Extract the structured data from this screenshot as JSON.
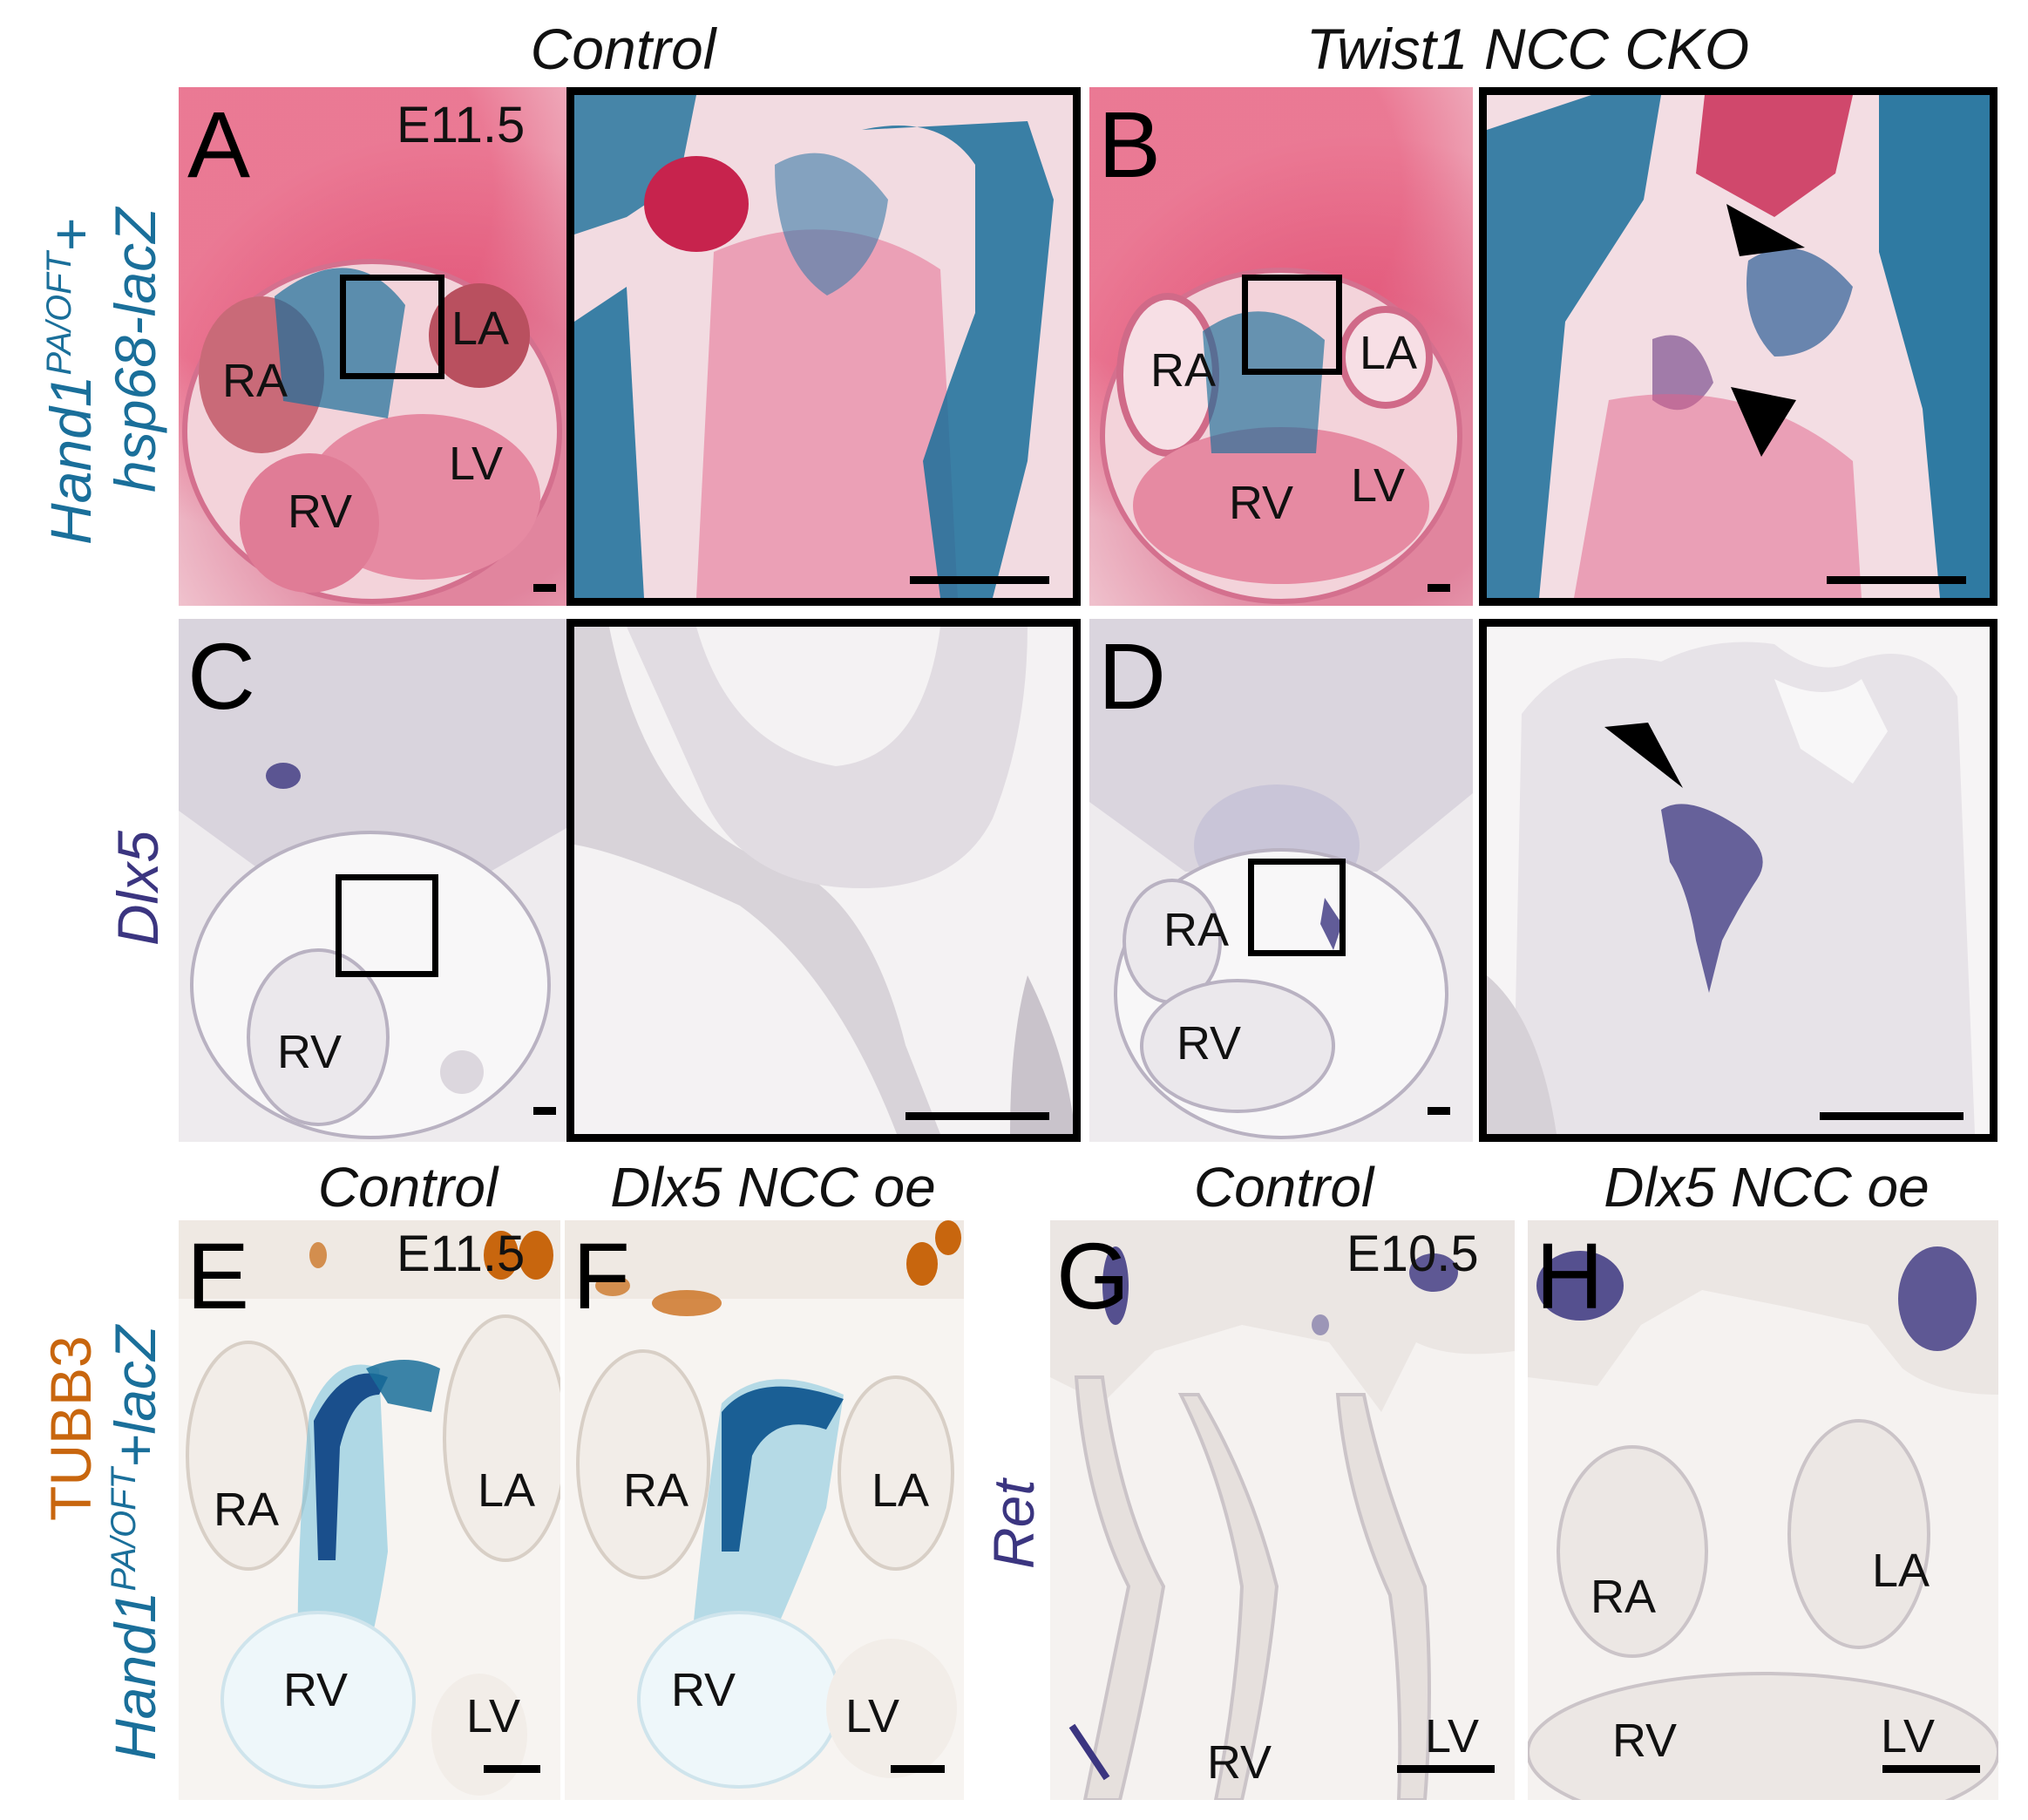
{
  "headers": {
    "top_left": "Control",
    "top_right": "Twist1 NCC CKO",
    "bottom_1": "Control",
    "bottom_2": "Dlx5 NCC oe",
    "bottom_3": "Control",
    "bottom_4": "Dlx5 NCC oe"
  },
  "row_labels": {
    "row1_line1_main": "Hand1",
    "row1_line1_sup": "PA/OFT",
    "row1_line1_plus": "+",
    "row1_line2": "hsp68-lacZ",
    "row2": "Dlx5",
    "row3_line1": "TUBB3",
    "row3_line2_main": "Hand1",
    "row3_line2_sup": "PA/OFT",
    "row3_line2_rest": "+lacZ",
    "row3_right": "Ret"
  },
  "panels": {
    "A": {
      "letter": "A",
      "stage": "E11.5",
      "labels": [
        "RA",
        "LA",
        "LV",
        "RV"
      ]
    },
    "B": {
      "letter": "B",
      "labels": [
        "RA",
        "LA",
        "RV",
        "LV"
      ]
    },
    "C": {
      "letter": "C",
      "labels": [
        "RV"
      ]
    },
    "D": {
      "letter": "D",
      "labels": [
        "RA",
        "RV"
      ]
    },
    "E": {
      "letter": "E",
      "stage": "E11.5",
      "labels": [
        "RA",
        "LA",
        "RV",
        "LV"
      ]
    },
    "F": {
      "letter": "F",
      "labels": [
        "RA",
        "LA",
        "RV",
        "LV"
      ]
    },
    "G": {
      "letter": "G",
      "stage": "E10.5",
      "labels": [
        "RV",
        "LV"
      ]
    },
    "H": {
      "letter": "H",
      "labels": [
        "RA",
        "LA",
        "RV",
        "LV"
      ]
    }
  },
  "colors": {
    "he_pink": "#e0507a",
    "lacz_blue": "#1a6f9a",
    "ish_purple": "#3b3580",
    "tubb3_orange": "#c8660e",
    "row1_label": "#1a6f9a",
    "row2_label": "#3b3580"
  }
}
